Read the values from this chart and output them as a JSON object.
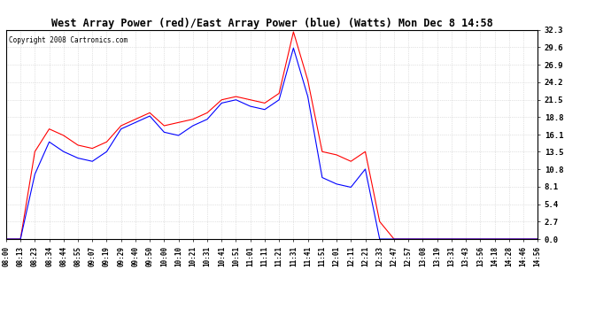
{
  "title": "West Array Power (red)/East Array Power (blue) (Watts) Mon Dec 8 14:58",
  "copyright": "Copyright 2008 Cartronics.com",
  "ylim": [
    0.0,
    32.3
  ],
  "yticks": [
    0.0,
    2.7,
    5.4,
    8.1,
    10.8,
    13.5,
    16.1,
    18.8,
    21.5,
    24.2,
    26.9,
    29.6,
    32.3
  ],
  "bg_color": "#ffffff",
  "grid_color": "#bbbbbb",
  "red_color": "#ff0000",
  "blue_color": "#0000ff",
  "xtick_labels": [
    "08:00",
    "08:13",
    "08:23",
    "08:34",
    "08:44",
    "08:55",
    "09:07",
    "09:19",
    "09:29",
    "09:40",
    "09:50",
    "10:00",
    "10:10",
    "10:21",
    "10:31",
    "10:41",
    "10:51",
    "11:01",
    "11:11",
    "11:21",
    "11:31",
    "11:41",
    "11:51",
    "12:01",
    "12:11",
    "12:21",
    "12:33",
    "12:47",
    "12:57",
    "13:08",
    "13:19",
    "13:31",
    "13:43",
    "13:56",
    "14:18",
    "14:28",
    "14:46",
    "14:56"
  ],
  "red_y": [
    0.0,
    0.0,
    13.5,
    17.0,
    16.0,
    14.5,
    14.0,
    15.0,
    17.5,
    18.5,
    19.5,
    17.5,
    18.0,
    18.5,
    19.5,
    21.5,
    22.0,
    21.5,
    21.0,
    22.5,
    32.0,
    24.5,
    13.5,
    13.0,
    12.0,
    13.5,
    2.7,
    0.0,
    0.0,
    0.0,
    0.0,
    0.0,
    0.0,
    0.0,
    0.0,
    0.0,
    0.0,
    0.0
  ],
  "blue_y": [
    0.0,
    0.0,
    10.0,
    15.0,
    13.5,
    12.5,
    12.0,
    13.5,
    17.0,
    18.0,
    19.0,
    16.5,
    16.0,
    17.5,
    18.5,
    21.0,
    21.5,
    20.5,
    20.0,
    21.5,
    29.5,
    22.0,
    9.5,
    8.5,
    8.0,
    10.8,
    0.0,
    0.0,
    0.0,
    0.0,
    0.0,
    0.0,
    0.0,
    0.0,
    0.0,
    0.0,
    0.0,
    0.0
  ]
}
